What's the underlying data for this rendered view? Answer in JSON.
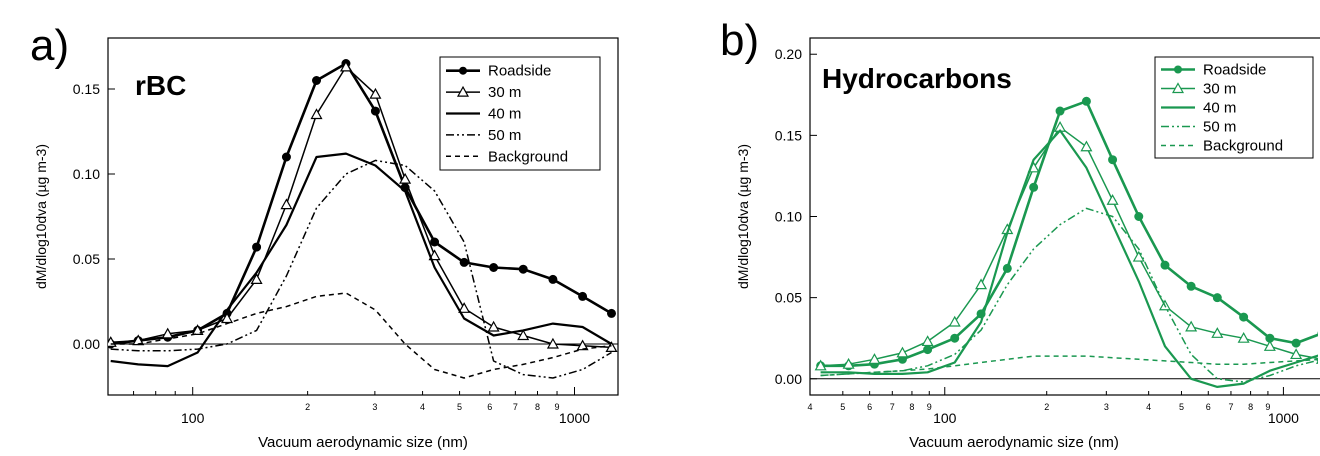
{
  "chart_data": [
    {
      "type": "line",
      "panel_label": "a)",
      "title": "rBC",
      "xlabel": "Vacuum aerodynamic size (nm)",
      "ylabel": "dM/dlog10dva (µg m-3)",
      "xscale": "log",
      "xlim": [
        60,
        1300
      ],
      "ylim": [
        -0.03,
        0.18
      ],
      "major_x_ticks": [
        {
          "value": 100,
          "label": "100"
        },
        {
          "value": 1000,
          "label": "1000"
        }
      ],
      "minor_x_ticks": [
        {
          "value": 70,
          "label": ""
        },
        {
          "value": 80,
          "label": ""
        },
        {
          "value": 90,
          "label": ""
        },
        {
          "value": 200,
          "label": "2"
        },
        {
          "value": 300,
          "label": "3"
        },
        {
          "value": 400,
          "label": "4"
        },
        {
          "value": 500,
          "label": "5"
        },
        {
          "value": 600,
          "label": "6"
        },
        {
          "value": 700,
          "label": "7"
        },
        {
          "value": 800,
          "label": "8"
        },
        {
          "value": 900,
          "label": "9"
        },
        {
          "value": 2000,
          "label": "2"
        },
        {
          "value": 3000,
          "label": "3"
        },
        {
          "value": 4000,
          "label": "4"
        },
        {
          "value": 5000,
          "label": "5"
        },
        {
          "value": 6000,
          "label": "6"
        },
        {
          "value": 7000,
          "label": "7"
        },
        {
          "value": 8000,
          "label": "8"
        },
        {
          "value": 9000,
          "label": "9"
        }
      ],
      "y_ticks": [
        {
          "value": 0,
          "label": "0.00"
        },
        {
          "value": 0.05,
          "label": "0.05"
        },
        {
          "value": 0.1,
          "label": "0.10"
        },
        {
          "value": 0.15,
          "label": "0.15"
        }
      ],
      "zero_line": true,
      "grid": false,
      "legend_position": "top-right",
      "series": [
        {
          "name": "Roadside",
          "style": "solid",
          "marker": "filled-circle",
          "color": "#000000",
          "x": [
            61,
            72,
            86,
            103,
            123,
            147,
            176,
            211,
            252,
            301,
            360,
            430,
            514,
            614,
            734,
            878,
            1050,
            1250
          ],
          "y": [
            0,
            0.002,
            0.004,
            0.008,
            0.018,
            0.057,
            0.11,
            0.155,
            0.165,
            0.137,
            0.092,
            0.06,
            0.048,
            0.045,
            0.044,
            0.038,
            0.028,
            0.018
          ]
        },
        {
          "name": "30 m",
          "style": "solid",
          "marker": "open-triangle",
          "color": "#000000",
          "x": [
            61,
            72,
            86,
            103,
            123,
            147,
            176,
            211,
            252,
            301,
            360,
            430,
            514,
            614,
            734,
            878,
            1050,
            1250
          ],
          "y": [
            0.001,
            0.002,
            0.006,
            0.008,
            0.015,
            0.038,
            0.082,
            0.135,
            0.163,
            0.147,
            0.097,
            0.052,
            0.021,
            0.01,
            0.005,
            0,
            -0.001,
            -0.002
          ]
        },
        {
          "name": "40 m",
          "style": "solid",
          "marker": "none",
          "color": "#000000",
          "x": [
            61,
            72,
            86,
            103,
            123,
            147,
            176,
            211,
            252,
            301,
            360,
            430,
            514,
            614,
            734,
            878,
            1050,
            1250
          ],
          "y": [
            -0.01,
            -0.012,
            -0.013,
            -0.005,
            0.02,
            0.042,
            0.07,
            0.11,
            0.112,
            0.105,
            0.09,
            0.045,
            0.015,
            0.005,
            0.008,
            0.012,
            0.01,
            0
          ]
        },
        {
          "name": "50 m",
          "style": "dash-dot",
          "marker": "none",
          "color": "#000000",
          "x": [
            61,
            72,
            86,
            103,
            123,
            147,
            176,
            211,
            252,
            301,
            360,
            430,
            514,
            614,
            734,
            878,
            1050,
            1250
          ],
          "y": [
            -0.003,
            -0.004,
            -0.004,
            -0.003,
            0,
            0.008,
            0.04,
            0.08,
            0.1,
            0.108,
            0.105,
            0.09,
            0.06,
            -0.01,
            -0.018,
            -0.02,
            -0.015,
            -0.005
          ]
        },
        {
          "name": "Background",
          "style": "dashed",
          "marker": "none",
          "color": "#000000",
          "x": [
            61,
            72,
            86,
            103,
            123,
            147,
            176,
            211,
            252,
            301,
            360,
            430,
            514,
            614,
            734,
            878,
            1050,
            1250
          ],
          "y": [
            0,
            0,
            0.003,
            0.006,
            0.012,
            0.018,
            0.022,
            0.028,
            0.03,
            0.02,
            0,
            -0.015,
            -0.02,
            -0.015,
            -0.012,
            -0.008,
            -0.003,
            -0.001
          ]
        }
      ]
    },
    {
      "type": "line",
      "panel_label": "b)",
      "title": "Hydrocarbons",
      "xlabel": "Vacuum aerodynamic size (nm)",
      "ylabel": "dM/dlog10dva (µg m-3)",
      "xscale": "log",
      "xlim": [
        40,
        1300
      ],
      "ylim": [
        -0.01,
        0.21
      ],
      "major_x_ticks": [
        {
          "value": 100,
          "label": "100"
        },
        {
          "value": 1000,
          "label": "1000"
        }
      ],
      "minor_x_ticks": [
        {
          "value": 20,
          "label": "2"
        },
        {
          "value": 30,
          "label": "3"
        },
        {
          "value": 40,
          "label": "4"
        },
        {
          "value": 50,
          "label": "5"
        },
        {
          "value": 60,
          "label": "6"
        },
        {
          "value": 70,
          "label": "7"
        },
        {
          "value": 80,
          "label": "8"
        },
        {
          "value": 90,
          "label": "9"
        },
        {
          "value": 200,
          "label": "2"
        },
        {
          "value": 300,
          "label": "3"
        },
        {
          "value": 400,
          "label": "4"
        },
        {
          "value": 500,
          "label": "5"
        },
        {
          "value": 600,
          "label": "6"
        },
        {
          "value": 700,
          "label": "7"
        },
        {
          "value": 800,
          "label": "8"
        },
        {
          "value": 900,
          "label": "9"
        }
      ],
      "y_ticks": [
        {
          "value": 0,
          "label": "0.00"
        },
        {
          "value": 0.05,
          "label": "0.05"
        },
        {
          "value": 0.1,
          "label": "0.10"
        },
        {
          "value": 0.15,
          "label": "0.15"
        },
        {
          "value": 0.2,
          "label": "0.20"
        }
      ],
      "zero_line": true,
      "grid": false,
      "legend_position": "top-right",
      "series": [
        {
          "name": "Roadside",
          "style": "solid",
          "marker": "filled-circle",
          "color": "#1a9850",
          "x": [
            43,
            52,
            62,
            75,
            89,
            107,
            128,
            153,
            183,
            219,
            262,
            313,
            374,
            447,
            534,
            638,
            763,
            912,
            1090,
            1300
          ],
          "y": [
            0.008,
            0.008,
            0.009,
            0.012,
            0.018,
            0.025,
            0.04,
            0.068,
            0.118,
            0.165,
            0.171,
            0.135,
            0.1,
            0.07,
            0.057,
            0.05,
            0.038,
            0.025,
            0.022,
            0.028
          ]
        },
        {
          "name": "30 m",
          "style": "solid",
          "marker": "open-triangle",
          "color": "#1a9850",
          "x": [
            43,
            52,
            62,
            75,
            89,
            107,
            128,
            153,
            183,
            219,
            262,
            313,
            374,
            447,
            534,
            638,
            763,
            912,
            1090,
            1300
          ],
          "y": [
            0.008,
            0.009,
            0.012,
            0.016,
            0.023,
            0.035,
            0.058,
            0.092,
            0.13,
            0.155,
            0.143,
            0.11,
            0.075,
            0.045,
            0.032,
            0.028,
            0.025,
            0.02,
            0.015,
            0.012
          ]
        },
        {
          "name": "40 m",
          "style": "solid",
          "marker": "none",
          "color": "#1a9850",
          "x": [
            43,
            52,
            62,
            75,
            89,
            107,
            128,
            153,
            183,
            219,
            262,
            313,
            374,
            447,
            534,
            638,
            763,
            912,
            1090,
            1300
          ],
          "y": [
            0.004,
            0.004,
            0.003,
            0.003,
            0.004,
            0.01,
            0.035,
            0.09,
            0.135,
            0.153,
            0.13,
            0.095,
            0.06,
            0.02,
            0,
            -0.005,
            -0.003,
            0.005,
            0.01,
            0.015
          ]
        },
        {
          "name": "50 m",
          "style": "dash-dot",
          "marker": "none",
          "color": "#1a9850",
          "x": [
            43,
            52,
            62,
            75,
            89,
            107,
            128,
            153,
            183,
            219,
            262,
            313,
            374,
            447,
            534,
            638,
            763,
            912,
            1090,
            1300
          ],
          "y": [
            0.002,
            0.003,
            0.004,
            0.005,
            0.008,
            0.015,
            0.03,
            0.058,
            0.08,
            0.095,
            0.105,
            0.1,
            0.08,
            0.045,
            0.015,
            0.0,
            -0.002,
            0.002,
            0.008,
            0.012
          ]
        },
        {
          "name": "Background",
          "style": "dashed",
          "marker": "none",
          "color": "#1a9850",
          "x": [
            43,
            52,
            62,
            75,
            89,
            107,
            128,
            153,
            183,
            219,
            262,
            313,
            374,
            447,
            534,
            638,
            763,
            912,
            1090,
            1300
          ],
          "y": [
            0.002,
            0.003,
            0.004,
            0.005,
            0.006,
            0.008,
            0.01,
            0.012,
            0.014,
            0.014,
            0.014,
            0.013,
            0.012,
            0.011,
            0.01,
            0.009,
            0.009,
            0.01,
            0.011,
            0.012
          ]
        }
      ]
    }
  ]
}
